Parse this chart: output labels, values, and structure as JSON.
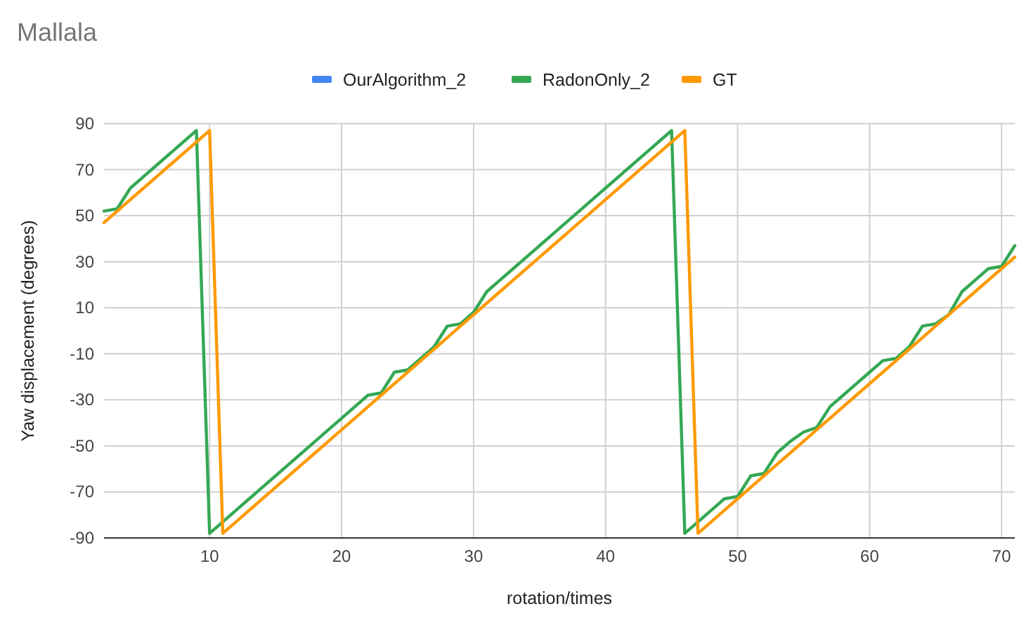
{
  "chart_data": {
    "type": "line",
    "title": "Mallala",
    "xlabel": "rotation/times",
    "ylabel": "Yaw displacement (degrees)",
    "x": [
      2,
      3,
      4,
      5,
      6,
      7,
      8,
      9,
      10,
      11,
      12,
      13,
      14,
      15,
      16,
      17,
      18,
      19,
      20,
      21,
      22,
      23,
      24,
      25,
      26,
      27,
      28,
      29,
      30,
      31,
      32,
      33,
      34,
      35,
      36,
      37,
      38,
      39,
      40,
      41,
      42,
      43,
      44,
      45,
      46,
      47,
      48,
      49,
      50,
      51,
      52,
      53,
      54,
      55,
      56,
      57,
      58,
      59,
      60,
      61,
      62,
      63,
      64,
      65,
      66,
      67,
      68,
      69,
      70,
      71
    ],
    "series": [
      {
        "name": "OurAlgorithm_2",
        "color": "#4285f4",
        "values": [
          null,
          null,
          null,
          null,
          null,
          null,
          null,
          null,
          null,
          null,
          null,
          null,
          null,
          null,
          null,
          null,
          null,
          null,
          null,
          null,
          null,
          null,
          null,
          null,
          null,
          null,
          null,
          null,
          null,
          null,
          null,
          null,
          null,
          null,
          null,
          null,
          null,
          null,
          null,
          null,
          null,
          null,
          null,
          null,
          null,
          null,
          null,
          null,
          null,
          null,
          null,
          null,
          null,
          null,
          null,
          null,
          null,
          null,
          null,
          null,
          null,
          null,
          null,
          null,
          null,
          null,
          null,
          null,
          null,
          null
        ]
      },
      {
        "name": "RadonOnly_2",
        "color": "#34a853",
        "values": [
          52,
          53,
          62,
          67,
          72,
          77,
          82,
          87,
          -88,
          -83,
          -78,
          -73,
          -68,
          -63,
          -58,
          -53,
          -48,
          -43,
          -38,
          -33,
          -28,
          -27,
          -18,
          -17,
          -12,
          -7,
          2,
          3,
          8,
          17,
          22,
          27,
          32,
          37,
          42,
          47,
          52,
          57,
          62,
          67,
          72,
          77,
          82,
          87,
          -88,
          -83,
          -78,
          -73,
          -72,
          -63,
          -62,
          -53,
          -48,
          -44,
          -42,
          -33,
          -28,
          -23,
          -18,
          -13,
          -12,
          -7,
          2,
          3,
          7,
          17,
          22,
          27,
          28,
          37
        ]
      },
      {
        "name": "GT",
        "color": "#ff9900",
        "values": [
          47,
          52,
          57,
          62,
          67,
          72,
          77,
          82,
          87,
          -88,
          -83,
          -78,
          -73,
          -68,
          -63,
          -58,
          -53,
          -48,
          -43,
          -38,
          -33,
          -28,
          -23,
          -18,
          -13,
          -8,
          -3,
          2,
          7,
          12,
          17,
          22,
          27,
          32,
          37,
          42,
          47,
          52,
          57,
          62,
          67,
          72,
          77,
          82,
          87,
          -88,
          -83,
          -78,
          -73,
          -68,
          -63,
          -58,
          -53,
          -48,
          -43,
          -38,
          -33,
          -28,
          -23,
          -18,
          -13,
          -8,
          -3,
          2,
          7,
          12,
          17,
          22,
          27,
          32
        ]
      }
    ],
    "xlim": [
      2,
      71
    ],
    "xticks": [
      10,
      20,
      30,
      40,
      50,
      60,
      70
    ],
    "ylim": [
      -90,
      90
    ],
    "yticks": [
      -90,
      -70,
      -50,
      -30,
      -10,
      10,
      30,
      50,
      70,
      90
    ],
    "grid": true,
    "legend": "top",
    "marker": "none",
    "line_style": "solid"
  }
}
